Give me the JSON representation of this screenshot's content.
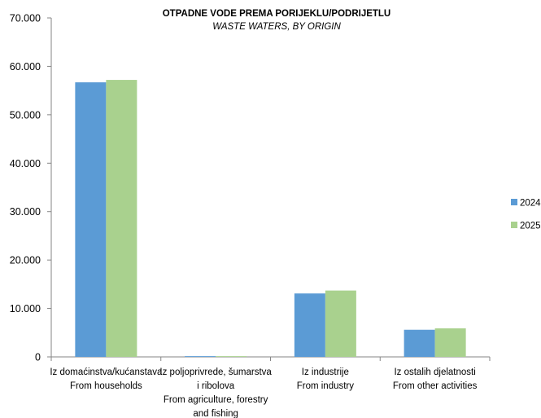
{
  "chart_data": {
    "type": "bar",
    "title": "OTPADNE VODE PREMA PORIJEKLU/PODRIJETLU",
    "subtitle": "WASTE WATERS, BY ORIGIN",
    "xlabel": "",
    "ylabel": "",
    "ylim": [
      0,
      70000
    ],
    "yticks": [
      0,
      10000,
      20000,
      30000,
      40000,
      50000,
      60000,
      70000
    ],
    "ytick_labels": [
      "0",
      "10.000",
      "20.000",
      "30.000",
      "40.000",
      "50.000",
      "60.000",
      "70.000"
    ],
    "grid": false,
    "legend_position": "right",
    "categories": [
      "Iz domaćinstva/kućanstava From households",
      "Iz poljoprivrede, šumarstva i ribolova From agriculture, forestry and fishing",
      "Iz industrije From industry",
      "Iz ostalih djelatnosti From other activities"
    ],
    "category_label_lines": [
      [
        "Iz domaćinstva/kućanstava",
        "From households"
      ],
      [
        "Iz poljoprivrede, šumarstva",
        "i ribolova",
        "From agriculture, forestry",
        "and fishing"
      ],
      [
        "Iz industrije",
        "From industry"
      ],
      [
        "Iz ostalih djelatnosti",
        "From other activities"
      ]
    ],
    "series": [
      {
        "name": "2024",
        "color": "#5b9bd5",
        "values": [
          56700,
          150,
          13100,
          5600
        ]
      },
      {
        "name": "2025",
        "color": "#a9d18e",
        "values": [
          57200,
          150,
          13700,
          5900
        ]
      }
    ]
  }
}
